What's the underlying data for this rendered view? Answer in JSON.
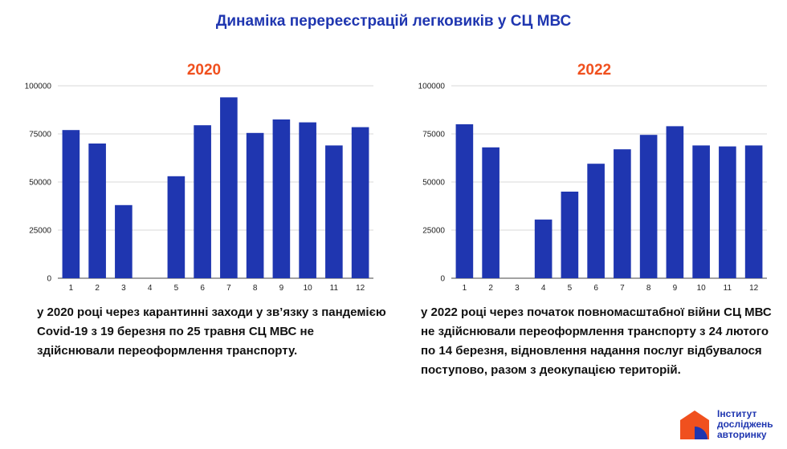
{
  "title": "Динаміка перереєстрацій легковиків у СЦ МВС",
  "notes": [
    "у 2020 році через карантинні заходи у зв’язку з пандемією Covid-19 з 19 березня по 25 травня СЦ МВС не здійснювали переоформлення транспорту.",
    "у 2022 році через початок повномасштабної війни СЦ МВС не здійснювали переоформлення транспорту з 24 лютого по 14 березня, відновлення надання послуг відбувалося поступово, разом з деокупацією територій."
  ],
  "logo": {
    "line1": "Інститут",
    "line2": "досліджень",
    "line3": "авторинку",
    "mark_colors": [
      "#f0501e",
      "#1f36b0"
    ]
  },
  "colors": {
    "bar": "#1f36b0",
    "title": "#1f36b0",
    "accent": "#f0501e",
    "grid": "#d9d9d9"
  },
  "chart_data": [
    {
      "type": "bar",
      "title": "2020",
      "categories": [
        "1",
        "2",
        "3",
        "4",
        "5",
        "6",
        "7",
        "8",
        "9",
        "10",
        "11",
        "12"
      ],
      "values": [
        77000,
        70000,
        38000,
        0,
        53000,
        79500,
        94000,
        75500,
        82500,
        81000,
        69000,
        78500
      ],
      "yticks": [
        "0",
        "25000",
        "50000",
        "75000",
        "100000"
      ],
      "ylim": [
        0,
        100000
      ],
      "grid": true
    },
    {
      "type": "bar",
      "title": "2022",
      "categories": [
        "1",
        "2",
        "3",
        "4",
        "5",
        "6",
        "7",
        "8",
        "9",
        "10",
        "11",
        "12"
      ],
      "values": [
        80000,
        68000,
        0,
        30500,
        45000,
        59500,
        67000,
        74500,
        79000,
        69000,
        68500,
        69000
      ],
      "yticks": [
        "0",
        "25000",
        "50000",
        "75000",
        "100000"
      ],
      "ylim": [
        0,
        100000
      ],
      "grid": true
    }
  ]
}
